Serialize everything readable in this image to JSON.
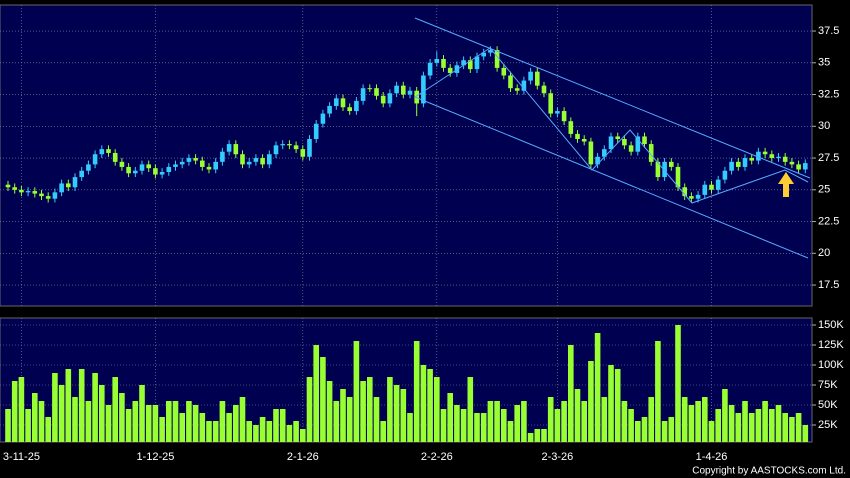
{
  "chart_data": [
    {
      "type": "candlestick",
      "categories": [
        null,
        null,
        "3-11-25",
        null,
        null,
        null,
        null,
        null,
        null,
        null,
        null,
        null,
        null,
        null,
        null,
        null,
        null,
        null,
        null,
        null,
        null,
        null,
        "1-12-25",
        null,
        null,
        null,
        null,
        null,
        null,
        null,
        null,
        null,
        null,
        null,
        null,
        null,
        null,
        null,
        null,
        null,
        null,
        null,
        null,
        null,
        "2-1-26",
        null,
        null,
        null,
        null,
        null,
        null,
        null,
        null,
        null,
        null,
        null,
        null,
        null,
        null,
        null,
        null,
        null,
        null,
        null,
        "2-2-26",
        null,
        null,
        null,
        null,
        null,
        null,
        null,
        null,
        null,
        null,
        null,
        null,
        null,
        null,
        null,
        null,
        null,
        "2-3-26",
        null,
        null,
        null,
        null,
        null,
        null,
        null,
        null,
        null,
        null,
        null,
        null,
        null,
        null,
        null,
        null,
        null,
        null,
        null,
        null,
        null,
        null,
        "1-4-26",
        null,
        null,
        null,
        null,
        null,
        null,
        null,
        null,
        null,
        null,
        null,
        null,
        null,
        null
      ],
      "open": [
        25.4,
        25.2,
        25.0,
        24.8,
        24.9,
        24.7,
        24.5,
        24.3,
        24.8,
        25.5,
        25.2,
        26.0,
        26.5,
        27.0,
        27.8,
        28.2,
        27.9,
        27.2,
        26.8,
        26.3,
        26.5,
        27.0,
        26.7,
        26.2,
        26.4,
        26.8,
        27.0,
        27.2,
        27.5,
        27.3,
        26.8,
        26.6,
        27.2,
        28.0,
        28.6,
        27.8,
        27.0,
        27.2,
        27.5,
        27.0,
        27.8,
        28.5,
        28.6,
        28.5,
        28.2,
        27.6,
        29.0,
        30.2,
        31.0,
        31.6,
        32.2,
        31.5,
        31.2,
        32.0,
        33.0,
        33.0,
        32.4,
        31.8,
        32.6,
        33.2,
        32.5,
        32.8,
        31.8,
        34.0,
        35.0,
        35.3,
        34.6,
        34.2,
        34.8,
        35.2,
        34.5,
        35.5,
        35.8,
        36.0,
        34.6,
        34.0,
        33.0,
        32.8,
        33.6,
        34.3,
        33.2,
        32.6,
        31.0,
        31.2,
        30.4,
        29.4,
        29.0,
        28.8,
        27.0,
        27.6,
        28.2,
        29.2,
        29.0,
        28.5,
        28.0,
        29.2,
        28.6,
        27.2,
        26.0,
        27.2,
        26.8,
        25.2,
        24.5,
        24.3,
        24.6,
        25.4,
        25.0,
        25.8,
        26.5,
        27.2,
        26.8,
        27.5,
        27.3,
        28.0,
        27.8,
        27.5,
        27.6,
        27.2,
        27.0,
        26.6
      ],
      "high": [
        25.7,
        25.5,
        25.3,
        25.2,
        25.2,
        25.0,
        24.8,
        25.1,
        25.8,
        25.8,
        26.3,
        26.8,
        27.3,
        28.1,
        28.5,
        28.5,
        28.2,
        27.5,
        27.1,
        26.8,
        27.3,
        27.3,
        27.0,
        26.7,
        27.1,
        27.3,
        27.5,
        27.8,
        27.8,
        27.6,
        27.1,
        27.5,
        28.3,
        28.9,
        28.9,
        28.1,
        27.5,
        27.8,
        27.8,
        28.1,
        28.8,
        28.9,
        28.9,
        28.8,
        28.5,
        29.3,
        30.5,
        31.3,
        31.9,
        32.5,
        32.5,
        31.8,
        32.3,
        33.3,
        33.3,
        33.3,
        32.7,
        32.9,
        33.5,
        33.5,
        33.1,
        33.1,
        34.3,
        35.3,
        35.9,
        35.6,
        34.9,
        35.1,
        35.5,
        35.5,
        35.8,
        36.1,
        36.3,
        36.3,
        34.9,
        34.3,
        33.3,
        33.9,
        34.6,
        34.6,
        33.5,
        32.9,
        31.5,
        31.5,
        30.7,
        29.7,
        29.3,
        29.1,
        27.9,
        28.5,
        29.5,
        29.5,
        29.3,
        28.8,
        29.5,
        29.5,
        28.9,
        27.5,
        27.5,
        27.5,
        27.1,
        25.5,
        24.8,
        24.9,
        25.7,
        25.7,
        26.1,
        26.8,
        27.5,
        27.5,
        27.8,
        27.8,
        28.3,
        28.3,
        28.1,
        27.9,
        27.9,
        27.5,
        27.3,
        27.4
      ],
      "low": [
        24.9,
        24.7,
        24.5,
        24.5,
        24.4,
        24.2,
        24.0,
        24.0,
        24.5,
        24.9,
        24.9,
        25.7,
        26.2,
        26.7,
        27.5,
        27.6,
        26.9,
        26.5,
        26.0,
        26.0,
        26.2,
        26.4,
        25.9,
        25.9,
        26.1,
        26.5,
        26.7,
        26.9,
        27.0,
        26.5,
        26.3,
        26.3,
        26.9,
        27.7,
        27.5,
        26.7,
        26.7,
        26.9,
        26.7,
        26.7,
        27.5,
        28.2,
        28.2,
        27.9,
        27.3,
        27.3,
        28.7,
        29.9,
        30.7,
        31.3,
        31.2,
        30.9,
        30.9,
        31.7,
        32.7,
        32.1,
        31.5,
        31.5,
        32.3,
        32.2,
        32.2,
        30.8,
        31.5,
        33.7,
        34.7,
        34.3,
        33.9,
        33.9,
        34.5,
        34.2,
        34.2,
        35.2,
        35.5,
        34.3,
        33.7,
        32.7,
        32.5,
        32.5,
        33.3,
        32.9,
        32.3,
        30.7,
        30.7,
        30.1,
        29.1,
        28.7,
        28.5,
        26.7,
        26.7,
        27.3,
        27.9,
        28.7,
        28.2,
        27.7,
        27.7,
        28.3,
        26.9,
        25.7,
        25.7,
        26.5,
        24.9,
        24.2,
        24.0,
        24.0,
        24.3,
        24.7,
        24.7,
        25.5,
        26.2,
        26.5,
        26.5,
        27.0,
        27.0,
        27.5,
        27.2,
        27.2,
        26.9,
        26.7,
        26.3,
        26.3
      ],
      "close": [
        25.2,
        25.0,
        24.8,
        24.9,
        24.7,
        24.5,
        24.3,
        24.8,
        25.5,
        25.2,
        26.0,
        26.5,
        27.0,
        27.8,
        28.2,
        27.9,
        27.2,
        26.8,
        26.3,
        26.5,
        27.0,
        26.7,
        26.2,
        26.4,
        26.8,
        27.0,
        27.2,
        27.5,
        27.3,
        26.8,
        26.6,
        27.2,
        28.0,
        28.6,
        27.8,
        27.0,
        27.2,
        27.5,
        27.0,
        27.8,
        28.5,
        28.6,
        28.5,
        28.2,
        27.6,
        29.0,
        30.2,
        31.0,
        31.6,
        32.2,
        31.5,
        31.2,
        32.0,
        33.0,
        33.0,
        32.4,
        31.8,
        32.6,
        33.2,
        32.5,
        32.8,
        31.8,
        34.0,
        35.0,
        35.3,
        34.6,
        34.2,
        34.8,
        35.2,
        34.5,
        35.5,
        35.8,
        36.0,
        34.6,
        34.0,
        33.0,
        32.8,
        33.6,
        34.3,
        33.2,
        32.6,
        31.0,
        31.2,
        30.4,
        29.4,
        29.0,
        28.8,
        27.0,
        27.6,
        28.2,
        29.2,
        29.0,
        28.5,
        28.0,
        29.2,
        28.6,
        27.2,
        26.0,
        27.2,
        26.8,
        25.2,
        24.5,
        24.3,
        24.6,
        25.4,
        25.0,
        25.8,
        26.5,
        27.2,
        26.8,
        27.5,
        27.3,
        28.0,
        27.8,
        27.5,
        27.6,
        27.2,
        27.0,
        26.6,
        27.1
      ],
      "up_color": "#33ccff",
      "down_color": "#99ff33",
      "ylim": [
        15.85,
        39.55
      ],
      "yticks": [
        17.5,
        20,
        22.5,
        25,
        27.5,
        30,
        32.5,
        35,
        37.5
      ],
      "grid": true
    },
    {
      "type": "bar",
      "values": [
        45000,
        80000,
        85000,
        45000,
        65000,
        55000,
        35000,
        90000,
        75000,
        95000,
        60000,
        95000,
        55000,
        90000,
        75000,
        50000,
        85000,
        65000,
        45000,
        55000,
        75000,
        50000,
        50000,
        35000,
        55000,
        55000,
        40000,
        55000,
        50000,
        40000,
        30000,
        30000,
        55000,
        40000,
        50000,
        60000,
        30000,
        25000,
        35000,
        30000,
        45000,
        45000,
        25000,
        30000,
        20000,
        85000,
        125000,
        110000,
        80000,
        55000,
        70000,
        60000,
        130000,
        80000,
        85000,
        60000,
        30000,
        85000,
        75000,
        70000,
        40000,
        130000,
        100000,
        95000,
        85000,
        45000,
        65000,
        50000,
        45000,
        85000,
        40000,
        40000,
        55000,
        55000,
        45000,
        30000,
        50000,
        55000,
        15000,
        20000,
        20000,
        60000,
        45000,
        55000,
        125000,
        70000,
        55000,
        105000,
        140000,
        60000,
        100000,
        95000,
        55000,
        45000,
        30000,
        35000,
        60000,
        130000,
        30000,
        35000,
        150000,
        60000,
        50000,
        55000,
        60000,
        30000,
        45000,
        70000,
        50000,
        40000,
        55000,
        40000,
        45000,
        55000,
        45000,
        50000,
        40000,
        35000,
        40000,
        25000
      ],
      "color": "#99ff33",
      "ylim": [
        3750,
        158750
      ],
      "yticks": [
        {
          "value": 25000,
          "label": "25K"
        },
        {
          "value": 50000,
          "label": "50K"
        },
        {
          "value": 75000,
          "label": "75K"
        },
        {
          "value": 100000,
          "label": "100K"
        },
        {
          "value": 125000,
          "label": "125K"
        },
        {
          "value": 150000,
          "label": "150K"
        }
      ],
      "grid": true
    }
  ],
  "copyright": "Copyright by AASTOCKS.com Ltd."
}
